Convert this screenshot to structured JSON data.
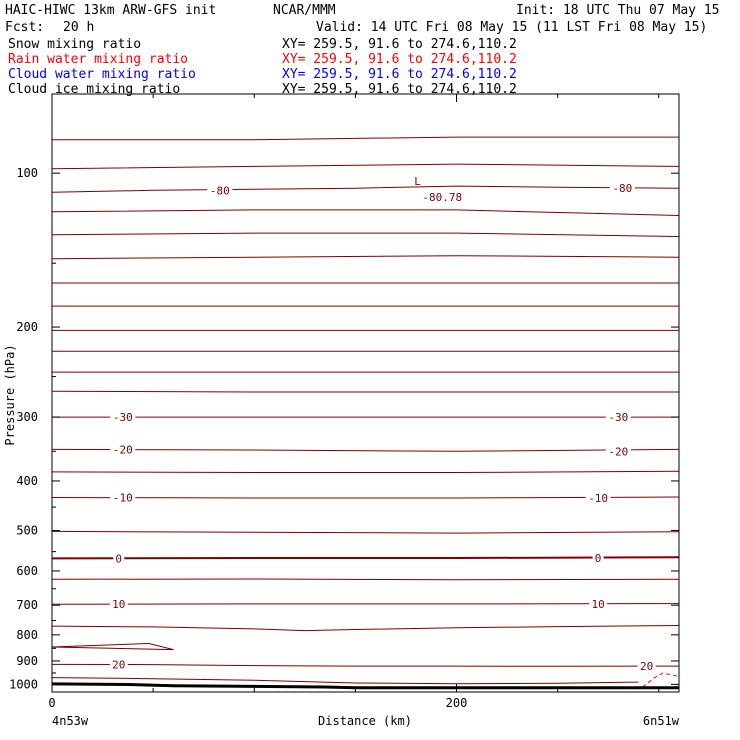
{
  "header": {
    "model": "HAIC-HIWC 13km ARW-GFS init",
    "org": "NCAR/MMM",
    "init": "Init: 18 UTC Thu 07 May 15",
    "fcst_label": "Fcst:",
    "fcst_value": "20 h",
    "valid": "Valid: 14 UTC Fri 08 May 15 (11 LST Fri 08 May 15)"
  },
  "chart_data": {
    "type": "line",
    "xlabel": "Distance (km)",
    "ylabel": "Pressure (hPa)",
    "xlim": [
      0,
      310
    ],
    "ylim": [
      1035,
      70
    ],
    "y_scale": "log",
    "x_ticks": [
      "0",
      "200"
    ],
    "y_ticks": [
      "100",
      "200",
      "300",
      "400",
      "500",
      "600",
      "700",
      "800",
      "900",
      "1000"
    ],
    "x_start_label": "4n53w",
    "x_end_label": "6n51w",
    "fields": [
      {
        "name": "Snow mixing ratio",
        "xy": "XY= 259.5, 91.6 to 274.6,110.2",
        "color": "#000000"
      },
      {
        "name": "Rain water mixing ratio",
        "xy": "XY= 259.5, 91.6 to 274.6,110.2",
        "color": "#ff0000"
      },
      {
        "name": "Cloud water mixing ratio",
        "xy": "XY= 259.5, 91.6 to 274.6,110.2",
        "color": "#0000ff"
      },
      {
        "name": "Cloud ice mixing ratio",
        "xy": "XY= 259.5, 91.6 to 274.6,110.2",
        "color": "#000000"
      }
    ],
    "contour_color": "#800000",
    "isotherms": [
      {
        "label": "-80",
        "points": [
          [
            0,
            109
          ],
          [
            50,
            108
          ],
          [
            100,
            107.5
          ],
          [
            150,
            107
          ],
          [
            200,
            106
          ],
          [
            250,
            106.5
          ],
          [
            310,
            107
          ]
        ],
        "labels_at": [
          [
            83,
            108
          ],
          [
            282,
            107
          ]
        ]
      },
      {
        "label": "-30",
        "points": [
          [
            0,
            300
          ],
          [
            60,
            300
          ],
          [
            150,
            300
          ],
          [
            250,
            300
          ],
          [
            310,
            300
          ]
        ],
        "labels_at": [
          [
            35,
            300
          ],
          [
            280,
            300
          ]
        ]
      },
      {
        "label": "-20",
        "points": [
          [
            0,
            347
          ],
          [
            100,
            348
          ],
          [
            200,
            350
          ],
          [
            310,
            347
          ]
        ],
        "labels_at": [
          [
            35,
            347
          ],
          [
            280,
            350
          ]
        ]
      },
      {
        "label": "-10",
        "points": [
          [
            0,
            431
          ],
          [
            100,
            432
          ],
          [
            200,
            432
          ],
          [
            310,
            430
          ]
        ],
        "labels_at": [
          [
            35,
            431
          ],
          [
            270,
            432
          ]
        ]
      },
      {
        "label": "0",
        "points": [
          [
            0,
            567
          ],
          [
            100,
            566
          ],
          [
            200,
            566
          ],
          [
            310,
            564
          ]
        ],
        "labels_at": [
          [
            33,
            567
          ],
          [
            270,
            566
          ]
        ]
      },
      {
        "label": "10",
        "points": [
          [
            0,
            697
          ],
          [
            100,
            696
          ],
          [
            200,
            696
          ],
          [
            310,
            695
          ]
        ],
        "labels_at": [
          [
            33,
            697
          ],
          [
            270,
            696
          ]
        ]
      },
      {
        "label": "20",
        "points": [
          [
            0,
            914
          ],
          [
            50,
            915
          ],
          [
            100,
            919
          ],
          [
            150,
            921
          ],
          [
            200,
            921
          ],
          [
            250,
            922
          ],
          [
            310,
            921
          ]
        ],
        "labels_at": [
          [
            33,
            914
          ],
          [
            294,
            921
          ]
        ]
      }
    ],
    "other_contours": [
      {
        "points": [
          [
            0,
            86
          ],
          [
            100,
            86
          ],
          [
            200,
            85
          ],
          [
            310,
            85
          ]
        ]
      },
      {
        "points": [
          [
            0,
            98
          ],
          [
            100,
            97
          ],
          [
            200,
            96
          ],
          [
            310,
            97
          ]
        ]
      },
      {
        "points": [
          [
            0,
            119
          ],
          [
            100,
            118
          ],
          [
            200,
            118
          ],
          [
            310,
            121
          ]
        ]
      },
      {
        "points": [
          [
            0,
            132
          ],
          [
            100,
            131
          ],
          [
            200,
            131
          ],
          [
            310,
            133
          ]
        ]
      },
      {
        "points": [
          [
            0,
            147
          ],
          [
            100,
            146
          ],
          [
            200,
            145
          ],
          [
            310,
            146
          ]
        ]
      },
      {
        "points": [
          [
            0,
            164
          ],
          [
            100,
            164
          ],
          [
            200,
            164
          ],
          [
            310,
            164
          ]
        ]
      },
      {
        "points": [
          [
            0,
            182
          ],
          [
            100,
            182
          ],
          [
            200,
            182
          ],
          [
            310,
            182
          ]
        ]
      },
      {
        "points": [
          [
            0,
            203
          ],
          [
            100,
            203
          ],
          [
            200,
            203
          ],
          [
            310,
            203
          ]
        ]
      },
      {
        "points": [
          [
            0,
            223
          ],
          [
            100,
            223
          ],
          [
            200,
            223
          ],
          [
            310,
            223
          ]
        ]
      },
      {
        "points": [
          [
            0,
            245
          ],
          [
            100,
            245
          ],
          [
            200,
            245
          ],
          [
            310,
            245
          ]
        ]
      },
      {
        "points": [
          [
            0,
            267
          ],
          [
            100,
            268
          ],
          [
            200,
            268
          ],
          [
            310,
            268
          ]
        ]
      },
      {
        "points": [
          [
            0,
            384
          ],
          [
            100,
            385
          ],
          [
            200,
            385
          ],
          [
            310,
            383
          ]
        ]
      },
      {
        "points": [
          [
            0,
            502
          ],
          [
            100,
            504
          ],
          [
            200,
            506
          ],
          [
            310,
            503
          ]
        ]
      },
      {
        "points": [
          [
            0,
            623
          ],
          [
            100,
            622
          ],
          [
            200,
            624
          ],
          [
            310,
            623
          ]
        ]
      },
      {
        "points": [
          [
            0,
            769
          ],
          [
            50,
            772
          ],
          [
            100,
            779
          ],
          [
            125,
            785
          ],
          [
            150,
            781
          ],
          [
            200,
            775
          ],
          [
            250,
            771
          ],
          [
            310,
            767
          ]
        ]
      },
      {
        "points": [
          [
            0,
            970
          ],
          [
            50,
            975
          ],
          [
            100,
            982
          ],
          [
            150,
            994
          ],
          [
            200,
            997
          ],
          [
            250,
            995
          ],
          [
            290,
            990
          ]
        ]
      },
      {
        "points": [
          [
            0,
            845
          ],
          [
            48,
            832
          ],
          [
            60,
            855
          ],
          [
            0,
            845
          ]
        ]
      }
    ],
    "rain_contour": {
      "points": [
        [
          292,
          1012
        ],
        [
          298,
          970
        ],
        [
          302,
          950
        ],
        [
          310,
          965
        ]
      ]
    },
    "surface": {
      "points": [
        [
          0,
          998
        ],
        [
          40,
          1001
        ],
        [
          60,
          1006
        ],
        [
          100,
          1009
        ],
        [
          135,
          1012
        ],
        [
          150,
          1015
        ],
        [
          310,
          1015
        ]
      ]
    },
    "low_marker": {
      "label": "L",
      "value": "-80.78",
      "x": 190,
      "p": 99
    }
  }
}
